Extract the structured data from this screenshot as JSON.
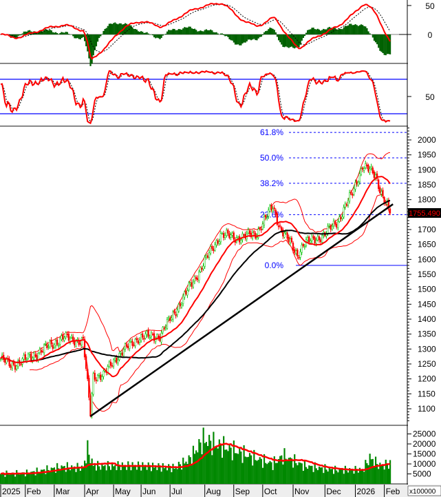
{
  "chart_data": {
    "type": "candlestick",
    "title": "",
    "current_price_label": "1755.490",
    "days": 270,
    "price_keypoints": [
      [
        0,
        1268
      ],
      [
        7,
        1245
      ],
      [
        19,
        1268
      ],
      [
        43,
        1338
      ],
      [
        57,
        1326
      ],
      [
        62,
        1084
      ],
      [
        64,
        1211
      ],
      [
        71,
        1211
      ],
      [
        79,
        1268
      ],
      [
        95,
        1338
      ],
      [
        110,
        1345
      ],
      [
        124,
        1453
      ],
      [
        138,
        1568
      ],
      [
        152,
        1684
      ],
      [
        162,
        1672
      ],
      [
        176,
        1684
      ],
      [
        188,
        1776
      ],
      [
        193,
        1707
      ],
      [
        205,
        1615
      ],
      [
        209,
        1650
      ],
      [
        224,
        1684
      ],
      [
        233,
        1730
      ],
      [
        243,
        1822
      ],
      [
        250,
        1915
      ],
      [
        259,
        1880
      ],
      [
        264,
        1811
      ],
      [
        269,
        1755.49
      ]
    ],
    "volume_keypoints": [
      [
        0,
        5000
      ],
      [
        19,
        5500
      ],
      [
        43,
        8500
      ],
      [
        57,
        8000
      ],
      [
        60,
        17000
      ],
      [
        64,
        9000
      ],
      [
        95,
        9000
      ],
      [
        120,
        8000
      ],
      [
        130,
        12000
      ],
      [
        140,
        22000
      ],
      [
        160,
        17000
      ],
      [
        175,
        13000
      ],
      [
        188,
        10000
      ],
      [
        195,
        14000
      ],
      [
        210,
        9000
      ],
      [
        230,
        7000
      ],
      [
        250,
        7000
      ],
      [
        255,
        13000
      ],
      [
        262,
        9000
      ],
      [
        269,
        10000
      ]
    ],
    "price_axis": {
      "ticks": [
        "2000",
        "1950",
        "1900",
        "1850",
        "1800",
        "1750",
        "1700",
        "1650",
        "1600",
        "1550",
        "1500",
        "1450",
        "1400",
        "1350",
        "1300",
        "1250",
        "1200",
        "1150",
        "1100"
      ],
      "hidden_tick": "1750",
      "range": [
        1060,
        2040
      ]
    },
    "macd_axis": {
      "ticks": [
        "50",
        "0"
      ]
    },
    "stoch_axis": {
      "ticks": [
        "50"
      ],
      "levels": [
        80,
        20
      ]
    },
    "volume_axis": {
      "ticks": [
        "25000",
        "20000",
        "15000",
        "10000",
        "5000"
      ],
      "multiplier_label": "x100000"
    },
    "x_labels": [
      {
        "label": "2025",
        "day": 0
      },
      {
        "label": "Feb",
        "day": 17
      },
      {
        "label": "Mar",
        "day": 37
      },
      {
        "label": "Apr",
        "day": 58
      },
      {
        "label": "May",
        "day": 78
      },
      {
        "label": "Jun",
        "day": 97
      },
      {
        "label": "Jul",
        "day": 117
      },
      {
        "label": "Aug",
        "day": 141
      },
      {
        "label": "Sep",
        "day": 161
      },
      {
        "label": "Oct",
        "day": 181
      },
      {
        "label": "Nov",
        "day": 202
      },
      {
        "label": "Dec",
        "day": 224
      },
      {
        "label": "2026",
        "day": 245
      },
      {
        "label": "Feb",
        "day": 265
      }
    ],
    "fibonacci": [
      {
        "label": "0.0%",
        "price": 1580
      },
      {
        "label": "23.6%",
        "price": 1750
      },
      {
        "label": "38.2%",
        "price": 1855
      },
      {
        "label": "50.0%",
        "price": 1940
      },
      {
        "label": "61.8%",
        "price": 2025
      }
    ],
    "trendline": {
      "from": [
        62,
        1075
      ],
      "to": [
        271,
        1785
      ]
    },
    "colors": {
      "up": "#00c000",
      "down": "#ff0000",
      "ma_fast": "#ff0000",
      "ma_slow": "#000000",
      "fib": "#0000ff",
      "volume": "#008800",
      "macd_hist": "#006000"
    }
  }
}
